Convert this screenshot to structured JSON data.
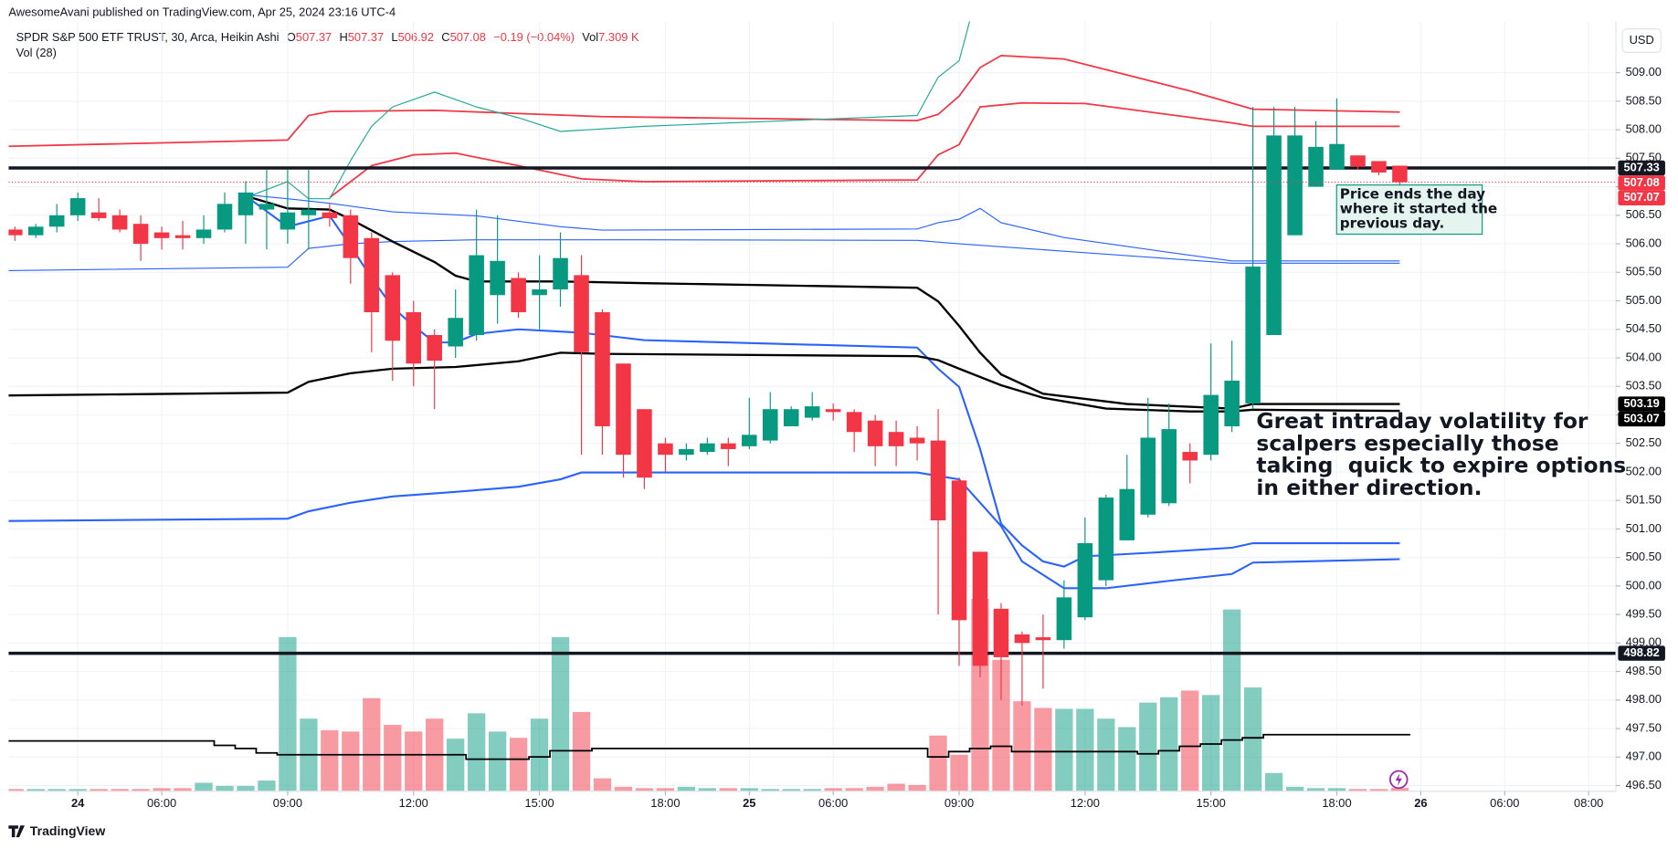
{
  "header": {
    "publisher": "AwesomeAvani published on TradingView.com, Apr 25, 2024 23:16 UTC-4"
  },
  "chart_data": {
    "type": "candlestick",
    "title": "SPDR S&P 500 ETF TRUST, 30, Arca, Heikin Ashi",
    "legend": {
      "o": "O",
      "h": "H",
      "l": "L",
      "c": "C",
      "change": "−0.19 (−0.04%)",
      "vol_key": "Vol",
      "vol": "7.309 K"
    },
    "volume_title": "Vol (28)",
    "currency": "USD",
    "up_color": "#089981",
    "down_color": "#f23645",
    "grid": true,
    "open": [
      506.25,
      506.15,
      506.3,
      506.5,
      506.55,
      506.5,
      506.35,
      506.2,
      506.15,
      506.1,
      506.25,
      506.5,
      506.6,
      506.25,
      506.5,
      506.55,
      506.5,
      506.1,
      505.45,
      504.8,
      504.4,
      504.2,
      504.4,
      505.1,
      505.4,
      505.1,
      505.2,
      505.45,
      504.8,
      503.9,
      503.1,
      502.5,
      502.3,
      502.35,
      502.5,
      502.45,
      502.55,
      502.8,
      502.95,
      503.1,
      503.05,
      502.9,
      502.7,
      502.6,
      502.55,
      501.85,
      500.6,
      499.6,
      499.15,
      499.1,
      499.05,
      499.45,
      500.1,
      500.8,
      501.25,
      501.45,
      502.35,
      502.3,
      502.8,
      503.2,
      504.4,
      506.15,
      507.0,
      507.3,
      507.55,
      507.45,
      507.37
    ],
    "high": [
      506.3,
      506.35,
      506.7,
      506.9,
      506.8,
      506.6,
      506.5,
      506.3,
      506.4,
      506.5,
      506.9,
      507.1,
      507.3,
      507.3,
      507.3,
      506.7,
      506.6,
      506.2,
      505.5,
      505.0,
      504.5,
      505.2,
      506.6,
      506.5,
      505.5,
      505.8,
      506.2,
      505.8,
      504.85,
      503.9,
      503.1,
      502.6,
      502.5,
      502.6,
      502.6,
      503.3,
      503.4,
      503.15,
      503.4,
      503.2,
      503.1,
      503.0,
      502.9,
      502.8,
      503.1,
      501.9,
      500.6,
      499.7,
      499.2,
      499.5,
      500.1,
      501.2,
      501.6,
      502.3,
      503.3,
      503.2,
      502.5,
      504.25,
      504.3,
      508.4,
      508.4,
      508.4,
      508.15,
      508.55,
      507.55,
      507.45,
      507.37
    ],
    "low": [
      506.05,
      506.1,
      506.2,
      506.4,
      506.4,
      506.2,
      505.7,
      505.9,
      505.9,
      506.0,
      506.2,
      506.0,
      505.9,
      506.0,
      505.9,
      506.3,
      505.3,
      504.1,
      503.6,
      503.5,
      503.1,
      504.0,
      504.3,
      504.6,
      504.7,
      504.5,
      504.9,
      502.3,
      502.3,
      501.9,
      501.7,
      502.0,
      502.2,
      502.3,
      502.1,
      502.4,
      502.5,
      502.8,
      502.9,
      502.9,
      502.35,
      502.1,
      502.1,
      502.2,
      499.5,
      498.6,
      498.4,
      498.0,
      497.9,
      498.2,
      498.9,
      499.4,
      500.0,
      500.8,
      501.2,
      501.4,
      501.8,
      502.2,
      502.7,
      503.1,
      504.4,
      506.15,
      507.0,
      507.3,
      507.3,
      507.2,
      506.92
    ],
    "close": [
      506.15,
      506.3,
      506.5,
      506.8,
      506.45,
      506.25,
      506.0,
      506.1,
      506.1,
      506.25,
      506.7,
      506.9,
      506.7,
      506.55,
      506.6,
      506.45,
      505.75,
      504.8,
      504.3,
      503.9,
      503.95,
      504.7,
      505.8,
      505.7,
      504.8,
      505.2,
      505.75,
      504.1,
      502.8,
      502.3,
      501.9,
      502.3,
      502.4,
      502.5,
      502.4,
      502.65,
      503.1,
      503.1,
      503.15,
      503.05,
      502.7,
      502.45,
      502.45,
      502.5,
      501.15,
      499.4,
      498.6,
      498.75,
      499.0,
      499.05,
      499.8,
      500.75,
      501.55,
      501.7,
      502.6,
      502.75,
      502.2,
      503.35,
      503.6,
      505.6,
      507.9,
      507.9,
      507.7,
      507.75,
      507.35,
      507.25,
      507.08
    ],
    "volume": [
      5,
      5,
      5,
      5,
      5,
      5,
      5,
      7,
      7,
      19,
      12,
      12,
      24,
      346,
      163,
      137,
      134,
      209,
      149,
      134,
      163,
      118,
      175,
      134,
      120,
      163,
      346,
      178,
      29,
      10,
      7,
      7,
      10,
      7,
      7,
      7,
      5,
      5,
      5,
      7,
      7,
      10,
      17,
      14,
      125,
      82,
      432,
      295,
      202,
      187,
      185,
      185,
      163,
      144,
      199,
      211,
      226,
      216,
      408,
      233,
      41,
      10,
      7,
      7,
      5,
      5,
      7.309
    ],
    "vol_ma": [
      113,
      113,
      113,
      113,
      113,
      113,
      113,
      113,
      113,
      113,
      103,
      96,
      86,
      82,
      82,
      82,
      82,
      82,
      82,
      82,
      82,
      82,
      72,
      72,
      72,
      77,
      91,
      91,
      96,
      96,
      96,
      96,
      96,
      96,
      96,
      96,
      96,
      96,
      96,
      96,
      96,
      96,
      96,
      96,
      77,
      89,
      96,
      101,
      89,
      89,
      89,
      89,
      89,
      89,
      84,
      91,
      101,
      106,
      115,
      120,
      127,
      127,
      127,
      127,
      127,
      127,
      127
    ],
    "xlim": [
      -0.3,
      76.3
    ],
    "xticks": [
      {
        "value": 3,
        "label": "24"
      },
      {
        "value": 7,
        "label": "06:00"
      },
      {
        "value": 13,
        "label": "09:00"
      },
      {
        "value": 19,
        "label": "12:00"
      },
      {
        "value": 25,
        "label": "15:00"
      },
      {
        "value": 31,
        "label": "18:00"
      },
      {
        "value": 35,
        "label": "25"
      },
      {
        "value": 39,
        "label": "06:00"
      },
      {
        "value": 45,
        "label": "09:00"
      },
      {
        "value": 51,
        "label": "12:00"
      },
      {
        "value": 57,
        "label": "15:00"
      },
      {
        "value": 63,
        "label": "18:00"
      },
      {
        "value": 67,
        "label": "26"
      },
      {
        "value": 71,
        "label": "06:00"
      },
      {
        "value": 75,
        "label": "08:00"
      }
    ],
    "ylim": [
      496.4,
      509.9
    ],
    "yticks": [
      {
        "value": 496.5,
        "label": "496.50"
      },
      {
        "value": 497,
        "label": "497.00"
      },
      {
        "value": 497.5,
        "label": "497.50"
      },
      {
        "value": 498,
        "label": "498.00"
      },
      {
        "value": 498.5,
        "label": "498.50"
      },
      {
        "value": 499,
        "label": "499.00"
      },
      {
        "value": 499.5,
        "label": "499.50"
      },
      {
        "value": 500,
        "label": "500.00"
      },
      {
        "value": 500.5,
        "label": "500.50"
      },
      {
        "value": 501,
        "label": "501.00"
      },
      {
        "value": 501.5,
        "label": "501.50"
      },
      {
        "value": 502,
        "label": "502.00"
      },
      {
        "value": 502.5,
        "label": "502.50"
      },
      {
        "value": 503,
        "label": "503.00"
      },
      {
        "value": 503.5,
        "label": "503.50"
      },
      {
        "value": 504,
        "label": "504.00"
      },
      {
        "value": 504.5,
        "label": "504.50"
      },
      {
        "value": 505,
        "label": "505.00"
      },
      {
        "value": 505.5,
        "label": "505.50"
      },
      {
        "value": 506,
        "label": "506.00"
      },
      {
        "value": 506.5,
        "label": "506.50"
      },
      {
        "value": 507,
        "label": "507.00"
      },
      {
        "value": 507.5,
        "label": "507.50"
      },
      {
        "value": 508,
        "label": "508.00"
      },
      {
        "value": 508.5,
        "label": "508.50"
      },
      {
        "value": 509,
        "label": "509.00"
      }
    ],
    "overlays": [
      {
        "color": "#f23645",
        "width": 1.5,
        "x": [
          -0.3,
          13,
          14,
          15,
          20,
          28,
          43,
          44,
          45,
          46,
          47,
          50,
          56,
          59,
          66
        ],
        "values": [
          507.71,
          507.82,
          508.25,
          508.32,
          508.34,
          508.23,
          508.16,
          508.27,
          508.59,
          509.09,
          509.3,
          509.24,
          508.68,
          508.36,
          508.31
        ]
      },
      {
        "color": "#f23645",
        "width": 1.5,
        "x": [
          15,
          17,
          19,
          21,
          24,
          27,
          30,
          43,
          44,
          45,
          46,
          48,
          51,
          58,
          59,
          66
        ],
        "values": [
          506.81,
          507.37,
          507.56,
          507.59,
          507.37,
          507.14,
          507.09,
          507.12,
          507.56,
          507.74,
          508.4,
          508.47,
          508.46,
          508.12,
          508.06,
          508.06
        ]
      },
      {
        "color": "#22ab94",
        "width": 1,
        "x": [
          11,
          13,
          14,
          15,
          16,
          17,
          18,
          20,
          22,
          24,
          26,
          30,
          43,
          44,
          45,
          45.5
        ],
        "values": [
          506.81,
          507.09,
          506.79,
          506.79,
          507.46,
          508.06,
          508.4,
          508.66,
          508.4,
          508.21,
          507.97,
          508.06,
          508.25,
          508.92,
          509.21,
          509.9
        ]
      },
      {
        "color": "#2962ff",
        "width": 1,
        "x": [
          -0.3,
          13,
          14,
          16,
          18,
          22,
          30,
          43,
          45,
          50,
          55,
          58,
          66
        ],
        "values": [
          505.53,
          505.59,
          505.92,
          506.0,
          506.04,
          506.07,
          506.07,
          506.06,
          506.0,
          505.87,
          505.74,
          505.66,
          505.66
        ]
      },
      {
        "color": "#2962ff",
        "width": 1,
        "x": [
          11,
          13,
          15,
          18,
          22,
          26,
          28,
          43,
          44,
          45,
          46,
          47,
          50,
          55,
          58,
          66
        ],
        "values": [
          506.86,
          506.79,
          506.71,
          506.56,
          506.49,
          506.3,
          506.24,
          506.26,
          506.37,
          506.43,
          506.62,
          506.37,
          506.11,
          505.85,
          505.7,
          505.7
        ]
      },
      {
        "color": "#2962ff",
        "width": 1.8,
        "x": [
          11,
          13,
          15,
          16,
          17,
          18,
          19,
          20,
          21,
          22,
          24,
          27,
          30,
          43,
          44,
          45,
          46,
          47,
          48,
          49,
          50,
          51,
          54,
          58,
          59,
          66
        ],
        "values": [
          506.84,
          506.3,
          506.49,
          505.96,
          505.4,
          504.89,
          504.56,
          504.27,
          504.27,
          504.42,
          504.5,
          504.44,
          504.31,
          504.18,
          503.81,
          503.49,
          502.4,
          501.09,
          500.71,
          500.43,
          500.34,
          500.52,
          500.58,
          500.67,
          500.75,
          500.75
        ]
      },
      {
        "color": "#2962ff",
        "width": 1.8,
        "x": [
          -0.3,
          13,
          14,
          16,
          18,
          21,
          24,
          26,
          27,
          30,
          43,
          45,
          46,
          47,
          48,
          50,
          52,
          55,
          58,
          59,
          66
        ],
        "values": [
          501.14,
          501.18,
          501.31,
          501.46,
          501.57,
          501.65,
          501.74,
          501.87,
          501.99,
          501.99,
          501.99,
          501.87,
          501.46,
          501.05,
          500.43,
          499.96,
          499.96,
          500.09,
          500.21,
          500.41,
          500.47
        ]
      },
      {
        "color": "#000000",
        "width": 2,
        "badge": true,
        "x": [
          11,
          13,
          15,
          16,
          18,
          20,
          21,
          22,
          26,
          30,
          43,
          44,
          45,
          46,
          47,
          49,
          53,
          58,
          59,
          66
        ],
        "values": [
          506.84,
          506.62,
          506.6,
          506.43,
          506.04,
          505.68,
          505.44,
          505.34,
          505.34,
          505.31,
          505.23,
          504.99,
          504.56,
          504.09,
          503.71,
          503.37,
          503.19,
          503.11,
          503.19,
          503.19
        ]
      },
      {
        "color": "#000000",
        "width": 2,
        "badge": true,
        "x": [
          -0.3,
          13,
          14,
          16,
          18,
          21,
          24,
          26,
          28,
          43,
          44,
          45,
          47,
          49,
          52,
          56,
          58,
          59,
          66
        ],
        "values": [
          503.34,
          503.39,
          503.58,
          503.73,
          503.81,
          503.84,
          503.94,
          504.09,
          504.07,
          504.03,
          503.96,
          503.81,
          503.52,
          503.3,
          503.11,
          503.06,
          503.06,
          503.09,
          503.07
        ]
      }
    ],
    "hlines": {
      "values": [
        507.33,
        498.82
      ],
      "color": "#131722"
    },
    "badges": {
      "values": [
        507.07
      ],
      "color": "#f23645"
    },
    "annotations": [
      {
        "lines": [
          "Price ends the day",
          "where it started the",
          "previous day."
        ]
      },
      {
        "lines": [
          "Great intraday volatility for",
          "scalpers especially those",
          "taking  quick to expire options",
          "in either direction."
        ]
      }
    ]
  },
  "footer": {
    "brand": "TradingView"
  }
}
